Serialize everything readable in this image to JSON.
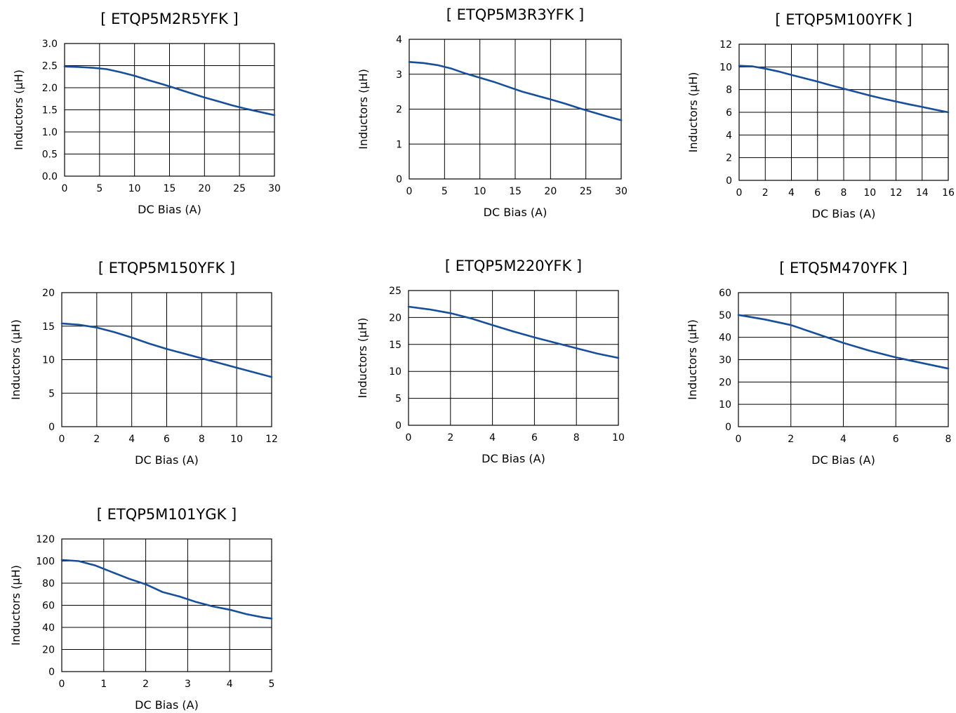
{
  "chart_data": [
    {
      "type": "line",
      "title": "[ ETQP5M2R5YFK ]",
      "xlabel": "DC Bias (A)",
      "ylabel": "Inductors (μH)",
      "xlim": [
        0,
        30
      ],
      "ylim": [
        0,
        3
      ],
      "xticks": [
        "0",
        "5",
        "10",
        "15",
        "20",
        "25",
        "30"
      ],
      "yticks": [
        "0.0",
        "0.5",
        "1.0",
        "1.5",
        "2.0",
        "2.5",
        "3.0"
      ],
      "grid": true,
      "series": [
        {
          "x": [
            0,
            2,
            4,
            6,
            8,
            10,
            12,
            14,
            16,
            18,
            20,
            22,
            24,
            26,
            28,
            30
          ],
          "y": [
            2.48,
            2.47,
            2.45,
            2.42,
            2.35,
            2.27,
            2.17,
            2.08,
            1.98,
            1.88,
            1.78,
            1.69,
            1.6,
            1.52,
            1.45,
            1.38
          ]
        }
      ]
    },
    {
      "type": "line",
      "title": "[ ETQP5M3R3YFK ]",
      "xlabel": "DC Bias (A)",
      "ylabel": "Inductors (μH)",
      "xlim": [
        0,
        30
      ],
      "ylim": [
        0,
        4
      ],
      "xticks": [
        "0",
        "5",
        "10",
        "15",
        "20",
        "25",
        "30"
      ],
      "yticks": [
        "0",
        "1",
        "2",
        "3",
        "4"
      ],
      "grid": true,
      "series": [
        {
          "x": [
            0,
            2,
            4,
            6,
            8,
            10,
            12,
            14,
            16,
            18,
            20,
            22,
            24,
            26,
            28,
            30
          ],
          "y": [
            3.35,
            3.32,
            3.26,
            3.16,
            3.02,
            2.9,
            2.78,
            2.64,
            2.5,
            2.39,
            2.28,
            2.16,
            2.03,
            1.91,
            1.79,
            1.68
          ]
        }
      ]
    },
    {
      "type": "line",
      "title": "[ ETQP5M100YFK ]",
      "xlabel": "DC Bias (A)",
      "ylabel": "Inductors (μH)",
      "xlim": [
        0,
        16
      ],
      "ylim": [
        0,
        12
      ],
      "xticks": [
        "0",
        "2",
        "4",
        "6",
        "8",
        "10",
        "12",
        "14",
        "16"
      ],
      "yticks": [
        "0",
        "2",
        "4",
        "6",
        "8",
        "10",
        "12"
      ],
      "grid": true,
      "series": [
        {
          "x": [
            0,
            1,
            2,
            3,
            4,
            5,
            6,
            7,
            8,
            9,
            10,
            11,
            12,
            13,
            14,
            15,
            16
          ],
          "y": [
            10.1,
            10.05,
            9.85,
            9.6,
            9.3,
            9.0,
            8.7,
            8.38,
            8.08,
            7.78,
            7.48,
            7.2,
            6.95,
            6.7,
            6.47,
            6.23,
            6.0
          ]
        }
      ]
    },
    {
      "type": "line",
      "title": "[ ETQP5M150YFK ]",
      "xlabel": "DC Bias (A)",
      "ylabel": "Inductors (μH)",
      "xlim": [
        0,
        12
      ],
      "ylim": [
        0,
        20
      ],
      "xticks": [
        "0",
        "2",
        "4",
        "6",
        "8",
        "10",
        "12"
      ],
      "yticks": [
        "0",
        "5",
        "10",
        "15",
        "20"
      ],
      "grid": true,
      "series": [
        {
          "x": [
            0,
            1,
            2,
            3,
            4,
            5,
            6,
            7,
            8,
            9,
            10,
            11,
            12
          ],
          "y": [
            15.4,
            15.2,
            14.8,
            14.1,
            13.3,
            12.4,
            11.6,
            10.9,
            10.2,
            9.5,
            8.8,
            8.1,
            7.4
          ]
        }
      ]
    },
    {
      "type": "line",
      "title": "[ ETQP5M220YFK ]",
      "xlabel": "DC Bias (A)",
      "ylabel": "Inductors (μH)",
      "xlim": [
        0,
        10
      ],
      "ylim": [
        0,
        25
      ],
      "xticks": [
        "0",
        "2",
        "4",
        "6",
        "8",
        "10"
      ],
      "yticks": [
        "0",
        "5",
        "10",
        "15",
        "20",
        "25"
      ],
      "grid": true,
      "series": [
        {
          "x": [
            0,
            1,
            2,
            3,
            4,
            5,
            6,
            7,
            8,
            9,
            10
          ],
          "y": [
            22.0,
            21.5,
            20.8,
            19.8,
            18.6,
            17.4,
            16.3,
            15.3,
            14.3,
            13.3,
            12.5
          ]
        }
      ]
    },
    {
      "type": "line",
      "title": "[ ETQ5M470YFK ]",
      "xlabel": "DC Bias (A)",
      "ylabel": "Inductors (μH)",
      "xlim": [
        0,
        8
      ],
      "ylim": [
        0,
        60
      ],
      "xticks": [
        "0",
        "2",
        "4",
        "6",
        "8"
      ],
      "yticks": [
        "0",
        "10",
        "20",
        "30",
        "40",
        "50",
        "60"
      ],
      "grid": true,
      "series": [
        {
          "x": [
            0,
            1,
            2,
            3,
            4,
            5,
            6,
            7,
            8
          ],
          "y": [
            50,
            48,
            45.5,
            41.5,
            37.5,
            34,
            31,
            28.5,
            26
          ]
        }
      ]
    },
    {
      "type": "line",
      "title": "[ ETQP5M101YGK ]",
      "xlabel": "DC Bias (A)",
      "ylabel": "Inductors (μH)",
      "xlim": [
        0,
        5
      ],
      "ylim": [
        0,
        120
      ],
      "xticks": [
        "0",
        "1",
        "2",
        "3",
        "4",
        "5"
      ],
      "yticks": [
        "0",
        "20",
        "40",
        "60",
        "80",
        "100",
        "120"
      ],
      "grid": true,
      "series": [
        {
          "x": [
            0,
            0.4,
            0.8,
            1.2,
            1.6,
            2.0,
            2.4,
            2.8,
            3.2,
            3.6,
            4.0,
            4.4,
            4.8,
            5.0
          ],
          "y": [
            101,
            100,
            96,
            90,
            84,
            79,
            72,
            68,
            63,
            59,
            56,
            52,
            49,
            48
          ]
        }
      ]
    }
  ],
  "style": {
    "line_color": "#174f9a",
    "grid_color": "#000000",
    "background": "#ffffff"
  }
}
